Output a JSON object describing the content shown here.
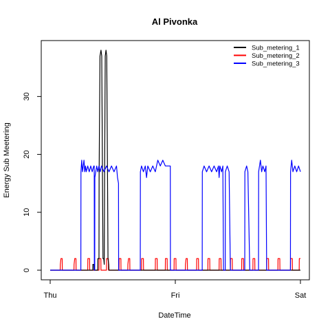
{
  "chart_data": {
    "type": "line",
    "title": "Al Pivonka",
    "xlabel": "DateTime",
    "ylabel": "Energy Sub Meetering",
    "x_tick_labels": [
      "Thu",
      "Fri",
      "Sat"
    ],
    "y_ticks": [
      0,
      10,
      20,
      30
    ],
    "xlim": [
      0,
      2
    ],
    "ylim": [
      0,
      38
    ],
    "grid": false,
    "legend_position": "top-right",
    "series": [
      {
        "name": "Sub_metering_1",
        "color": "#000000",
        "points": [
          [
            0.0,
            0
          ],
          [
            0.34,
            0
          ],
          [
            0.341,
            1
          ],
          [
            0.349,
            1
          ],
          [
            0.35,
            0
          ],
          [
            0.38,
            0
          ],
          [
            0.381,
            2
          ],
          [
            0.39,
            2
          ],
          [
            0.391,
            16
          ],
          [
            0.398,
            37
          ],
          [
            0.406,
            38
          ],
          [
            0.412,
            37
          ],
          [
            0.418,
            16
          ],
          [
            0.422,
            2
          ],
          [
            0.428,
            2
          ],
          [
            0.432,
            1
          ],
          [
            0.435,
            16
          ],
          [
            0.44,
            37
          ],
          [
            0.446,
            38
          ],
          [
            0.452,
            37
          ],
          [
            0.458,
            17
          ],
          [
            0.462,
            2
          ],
          [
            0.468,
            1
          ],
          [
            0.47,
            0
          ],
          [
            2.0,
            0
          ]
        ]
      },
      {
        "name": "Sub_metering_2",
        "color": "#ff0000",
        "points": [
          [
            0.0,
            0
          ],
          [
            0.08,
            0
          ],
          [
            0.081,
            1
          ],
          [
            0.086,
            2
          ],
          [
            0.096,
            2
          ],
          [
            0.097,
            0
          ],
          [
            0.19,
            0
          ],
          [
            0.191,
            1
          ],
          [
            0.196,
            2
          ],
          [
            0.206,
            2
          ],
          [
            0.207,
            0
          ],
          [
            0.3,
            0
          ],
          [
            0.301,
            2
          ],
          [
            0.315,
            2
          ],
          [
            0.316,
            0
          ],
          [
            0.39,
            0
          ],
          [
            0.391,
            2
          ],
          [
            0.405,
            2
          ],
          [
            0.406,
            0
          ],
          [
            0.45,
            0
          ],
          [
            0.451,
            2
          ],
          [
            0.465,
            2
          ],
          [
            0.466,
            0
          ],
          [
            0.55,
            0
          ],
          [
            0.551,
            2
          ],
          [
            0.565,
            2
          ],
          [
            0.566,
            0
          ],
          [
            0.62,
            0
          ],
          [
            0.621,
            1
          ],
          [
            0.626,
            2
          ],
          [
            0.636,
            2
          ],
          [
            0.637,
            0
          ],
          [
            0.73,
            0
          ],
          [
            0.731,
            2
          ],
          [
            0.745,
            2
          ],
          [
            0.746,
            0
          ],
          [
            0.84,
            0
          ],
          [
            0.841,
            2
          ],
          [
            0.855,
            2
          ],
          [
            0.856,
            0
          ],
          [
            0.92,
            0
          ],
          [
            0.921,
            2
          ],
          [
            0.935,
            2
          ],
          [
            0.936,
            0
          ],
          [
            0.99,
            0
          ],
          [
            0.991,
            2
          ],
          [
            1.005,
            2
          ],
          [
            1.006,
            0
          ],
          [
            1.08,
            0
          ],
          [
            1.081,
            1
          ],
          [
            1.086,
            2
          ],
          [
            1.096,
            2
          ],
          [
            1.097,
            0
          ],
          [
            1.17,
            0
          ],
          [
            1.171,
            2
          ],
          [
            1.185,
            2
          ],
          [
            1.186,
            0
          ],
          [
            1.26,
            0
          ],
          [
            1.261,
            2
          ],
          [
            1.275,
            2
          ],
          [
            1.276,
            0
          ],
          [
            1.35,
            0
          ],
          [
            1.351,
            2
          ],
          [
            1.365,
            2
          ],
          [
            1.366,
            0
          ],
          [
            1.44,
            0
          ],
          [
            1.441,
            2
          ],
          [
            1.455,
            2
          ],
          [
            1.456,
            0
          ],
          [
            1.53,
            0
          ],
          [
            1.531,
            2
          ],
          [
            1.545,
            2
          ],
          [
            1.546,
            0
          ],
          [
            1.62,
            0
          ],
          [
            1.621,
            2
          ],
          [
            1.635,
            2
          ],
          [
            1.636,
            0
          ],
          [
            1.73,
            0
          ],
          [
            1.731,
            2
          ],
          [
            1.745,
            2
          ],
          [
            1.746,
            0
          ],
          [
            1.82,
            0
          ],
          [
            1.821,
            2
          ],
          [
            1.835,
            2
          ],
          [
            1.836,
            0
          ],
          [
            1.92,
            0
          ],
          [
            1.921,
            2
          ],
          [
            1.935,
            2
          ],
          [
            1.936,
            0
          ],
          [
            1.99,
            0
          ],
          [
            1.991,
            2
          ],
          [
            2.0,
            2
          ]
        ]
      },
      {
        "name": "Sub_metering_3",
        "color": "#0000ff",
        "points": [
          [
            0.0,
            0
          ],
          [
            0.245,
            0
          ],
          [
            0.246,
            17
          ],
          [
            0.252,
            19
          ],
          [
            0.258,
            17
          ],
          [
            0.264,
            18
          ],
          [
            0.27,
            19
          ],
          [
            0.276,
            17
          ],
          [
            0.282,
            18
          ],
          [
            0.288,
            17
          ],
          [
            0.3,
            18
          ],
          [
            0.312,
            17
          ],
          [
            0.324,
            18
          ],
          [
            0.336,
            17
          ],
          [
            0.348,
            18
          ],
          [
            0.352,
            18
          ],
          [
            0.353,
            0
          ],
          [
            0.356,
            0
          ],
          [
            0.357,
            16
          ],
          [
            0.364,
            17
          ],
          [
            0.372,
            18
          ],
          [
            0.38,
            17
          ],
          [
            0.39,
            18
          ],
          [
            0.4,
            17
          ],
          [
            0.41,
            18
          ],
          [
            0.43,
            17
          ],
          [
            0.45,
            18
          ],
          [
            0.47,
            17
          ],
          [
            0.49,
            18
          ],
          [
            0.51,
            17
          ],
          [
            0.53,
            18
          ],
          [
            0.538,
            16
          ],
          [
            0.546,
            15
          ],
          [
            0.547,
            0
          ],
          [
            0.72,
            0
          ],
          [
            0.721,
            17
          ],
          [
            0.73,
            18
          ],
          [
            0.745,
            17
          ],
          [
            0.76,
            18
          ],
          [
            0.77,
            16
          ],
          [
            0.78,
            18
          ],
          [
            0.8,
            17
          ],
          [
            0.82,
            18
          ],
          [
            0.84,
            17
          ],
          [
            0.86,
            19
          ],
          [
            0.88,
            18
          ],
          [
            0.9,
            19
          ],
          [
            0.92,
            18
          ],
          [
            0.96,
            18
          ],
          [
            0.961,
            0
          ],
          [
            1.215,
            0
          ],
          [
            1.216,
            17
          ],
          [
            1.23,
            18
          ],
          [
            1.25,
            17
          ],
          [
            1.27,
            18
          ],
          [
            1.29,
            17
          ],
          [
            1.31,
            18
          ],
          [
            1.33,
            17
          ],
          [
            1.345,
            18
          ],
          [
            1.35,
            16
          ],
          [
            1.356,
            18
          ],
          [
            1.37,
            17
          ],
          [
            1.38,
            18
          ],
          [
            1.385,
            0
          ],
          [
            1.399,
            0
          ],
          [
            1.4,
            17
          ],
          [
            1.415,
            18
          ],
          [
            1.43,
            17
          ],
          [
            1.44,
            0
          ],
          [
            1.555,
            0
          ],
          [
            1.556,
            17
          ],
          [
            1.57,
            18
          ],
          [
            1.58,
            17
          ],
          [
            1.595,
            0
          ],
          [
            1.665,
            0
          ],
          [
            1.666,
            17
          ],
          [
            1.68,
            19
          ],
          [
            1.69,
            17
          ],
          [
            1.7,
            18
          ],
          [
            1.715,
            17
          ],
          [
            1.725,
            18
          ],
          [
            1.73,
            0
          ],
          [
            1.92,
            0
          ],
          [
            1.921,
            17
          ],
          [
            1.93,
            19
          ],
          [
            1.94,
            17
          ],
          [
            1.955,
            18
          ],
          [
            1.97,
            17
          ],
          [
            1.985,
            18
          ],
          [
            2.0,
            17
          ]
        ]
      }
    ]
  }
}
